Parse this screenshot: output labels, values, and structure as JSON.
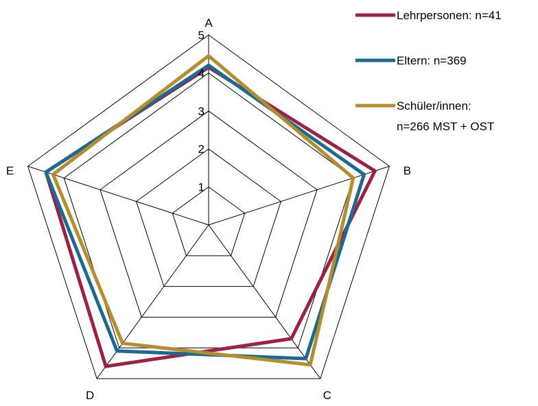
{
  "chart_data": {
    "type": "radar",
    "axes": [
      "A",
      "B",
      "C",
      "D",
      "E"
    ],
    "rlim": [
      0,
      5
    ],
    "ticks": [
      "1",
      "2",
      "3",
      "4",
      "5"
    ],
    "grid": true,
    "legend_position": "top-right",
    "series": [
      {
        "name": "Lehrpersonen: n=41",
        "color": "#9B2245",
        "values": [
          4.15,
          4.6,
          3.7,
          4.6,
          4.5
        ]
      },
      {
        "name": "Eltern: n=369",
        "color": "#1B6A93",
        "values": [
          4.2,
          4.3,
          4.35,
          4.1,
          4.5
        ]
      },
      {
        "name": "Schüler/innen: n=266 MST + OST",
        "color": "#B68D2C",
        "values": [
          4.45,
          4.0,
          4.55,
          3.85,
          4.3
        ]
      }
    ],
    "legend": {
      "line1": [
        "Lehrpersonen: n=41"
      ],
      "line2": [
        "Eltern: n=369"
      ],
      "line3": [
        "Schüler/innen:",
        "n=266 MST + OST"
      ]
    }
  }
}
